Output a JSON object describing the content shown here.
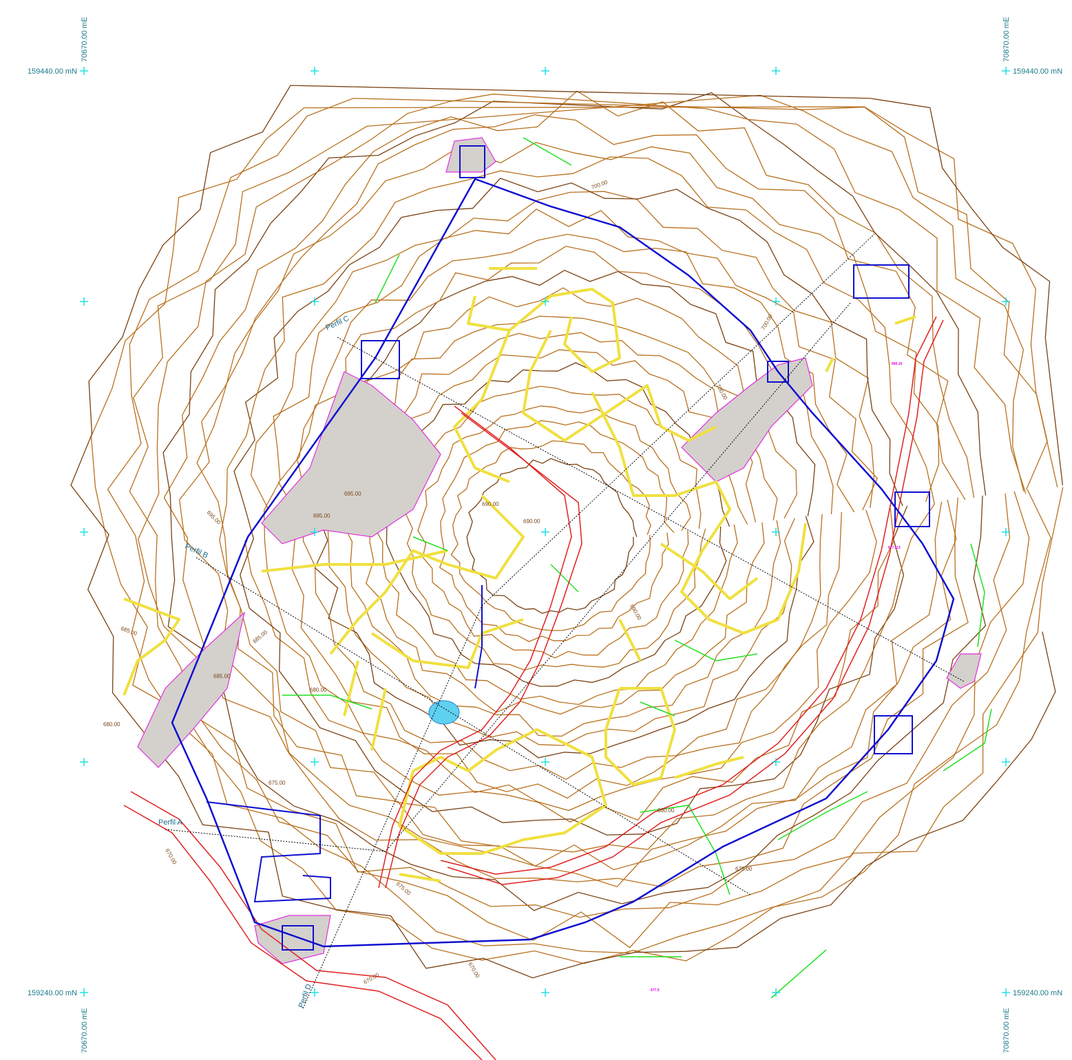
{
  "grid": {
    "north_top": "159440.00 mN",
    "north_bottom": "159240.00 mN",
    "east_left": "70670.00 mE",
    "east_right": "70870.00 mE"
  },
  "profiles": [
    "Perfil A",
    "Perfil B",
    "Perfil C",
    "Perfil D"
  ],
  "contour_labels": [
    "700.00",
    "695.00",
    "690.00",
    "685.00",
    "680.00",
    "675.00",
    "670.00"
  ],
  "spot_heights": [
    "677.113",
    "690.10",
    "677.5"
  ]
}
